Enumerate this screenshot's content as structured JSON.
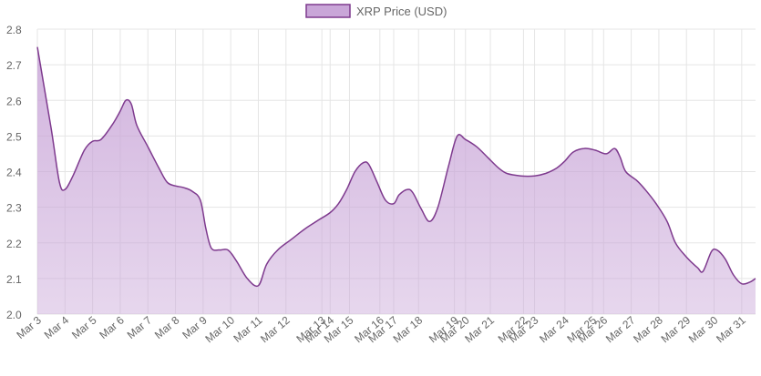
{
  "chart_data": {
    "type": "area",
    "title": "",
    "xlabel": "",
    "ylabel": "",
    "legend": {
      "position": "top",
      "label": "XRP Price (USD)"
    },
    "colors": {
      "line": "#7e3a8e",
      "fill": "#c9a6d8",
      "grid": "#e5e5e5",
      "tick": "#666666"
    },
    "grid": true,
    "ylim": [
      2.0,
      2.8
    ],
    "y_ticks": [
      "2.0",
      "2.1",
      "2.2",
      "2.3",
      "2.4",
      "2.5",
      "2.6",
      "2.7",
      "2.8"
    ],
    "x_labels": [
      {
        "t": 0,
        "label": "Mar 3"
      },
      {
        "t": 1,
        "label": "Mar 4"
      },
      {
        "t": 2,
        "label": "Mar 5"
      },
      {
        "t": 3,
        "label": "Mar 6"
      },
      {
        "t": 4,
        "label": "Mar 7"
      },
      {
        "t": 5,
        "label": "Mar 8"
      },
      {
        "t": 6,
        "label": "Mar 9"
      },
      {
        "t": 7,
        "label": "Mar 10"
      },
      {
        "t": 8,
        "label": "Mar 11"
      },
      {
        "t": 9,
        "label": "Mar 12"
      },
      {
        "t": 10.3,
        "label": "Mar 13"
      },
      {
        "t": 10.6,
        "label": "Mar 14"
      },
      {
        "t": 11.3,
        "label": "Mar 15"
      },
      {
        "t": 12.4,
        "label": "Mar 16"
      },
      {
        "t": 12.9,
        "label": "Mar 17"
      },
      {
        "t": 13.8,
        "label": "Mar 18"
      },
      {
        "t": 15.1,
        "label": "Mar 19"
      },
      {
        "t": 15.5,
        "label": "Mar 20"
      },
      {
        "t": 16.4,
        "label": "Mar 21"
      },
      {
        "t": 17.6,
        "label": "Mar 22"
      },
      {
        "t": 18.0,
        "label": "Mar 23"
      },
      {
        "t": 19.1,
        "label": "Mar 24"
      },
      {
        "t": 20.1,
        "label": "Mar 25"
      },
      {
        "t": 20.5,
        "label": "Mar 26"
      },
      {
        "t": 21.5,
        "label": "Mar 27"
      },
      {
        "t": 22.5,
        "label": "Mar 28"
      },
      {
        "t": 23.5,
        "label": "Mar 29"
      },
      {
        "t": 24.5,
        "label": "Mar 30"
      },
      {
        "t": 25.5,
        "label": "Mar 31"
      }
    ],
    "series": [
      {
        "name": "XRP Price (USD)",
        "points": [
          [
            0.0,
            2.75
          ],
          [
            0.5,
            2.52
          ],
          [
            0.8,
            2.37
          ],
          [
            1.0,
            2.35
          ],
          [
            1.3,
            2.39
          ],
          [
            1.7,
            2.46
          ],
          [
            2.0,
            2.485
          ],
          [
            2.3,
            2.49
          ],
          [
            2.7,
            2.53
          ],
          [
            3.0,
            2.57
          ],
          [
            3.2,
            2.6
          ],
          [
            3.4,
            2.59
          ],
          [
            3.6,
            2.53
          ],
          [
            4.0,
            2.47
          ],
          [
            4.4,
            2.41
          ],
          [
            4.7,
            2.37
          ],
          [
            5.0,
            2.36
          ],
          [
            5.3,
            2.355
          ],
          [
            5.6,
            2.345
          ],
          [
            5.9,
            2.32
          ],
          [
            6.1,
            2.24
          ],
          [
            6.3,
            2.185
          ],
          [
            6.6,
            2.18
          ],
          [
            6.9,
            2.18
          ],
          [
            7.2,
            2.15
          ],
          [
            7.6,
            2.1
          ],
          [
            8.0,
            2.08
          ],
          [
            8.3,
            2.14
          ],
          [
            8.7,
            2.18
          ],
          [
            9.2,
            2.21
          ],
          [
            9.7,
            2.24
          ],
          [
            10.2,
            2.265
          ],
          [
            10.6,
            2.285
          ],
          [
            10.9,
            2.31
          ],
          [
            11.2,
            2.35
          ],
          [
            11.5,
            2.4
          ],
          [
            11.8,
            2.425
          ],
          [
            12.0,
            2.42
          ],
          [
            12.3,
            2.37
          ],
          [
            12.6,
            2.32
          ],
          [
            12.9,
            2.31
          ],
          [
            13.1,
            2.335
          ],
          [
            13.4,
            2.35
          ],
          [
            13.6,
            2.34
          ],
          [
            13.9,
            2.295
          ],
          [
            14.2,
            2.26
          ],
          [
            14.5,
            2.3
          ],
          [
            14.9,
            2.42
          ],
          [
            15.2,
            2.5
          ],
          [
            15.5,
            2.49
          ],
          [
            15.9,
            2.47
          ],
          [
            16.3,
            2.44
          ],
          [
            16.7,
            2.41
          ],
          [
            17.0,
            2.395
          ],
          [
            17.5,
            2.388
          ],
          [
            18.0,
            2.388
          ],
          [
            18.4,
            2.395
          ],
          [
            18.8,
            2.41
          ],
          [
            19.1,
            2.43
          ],
          [
            19.4,
            2.455
          ],
          [
            19.8,
            2.465
          ],
          [
            20.2,
            2.46
          ],
          [
            20.6,
            2.45
          ],
          [
            20.9,
            2.465
          ],
          [
            21.1,
            2.44
          ],
          [
            21.3,
            2.4
          ],
          [
            21.7,
            2.375
          ],
          [
            22.0,
            2.35
          ],
          [
            22.4,
            2.31
          ],
          [
            22.8,
            2.26
          ],
          [
            23.1,
            2.2
          ],
          [
            23.5,
            2.16
          ],
          [
            23.9,
            2.13
          ],
          [
            24.1,
            2.12
          ],
          [
            24.4,
            2.175
          ],
          [
            24.6,
            2.18
          ],
          [
            24.9,
            2.155
          ],
          [
            25.2,
            2.11
          ],
          [
            25.5,
            2.085
          ],
          [
            25.8,
            2.09
          ],
          [
            26.0,
            2.1
          ]
        ]
      }
    ]
  }
}
